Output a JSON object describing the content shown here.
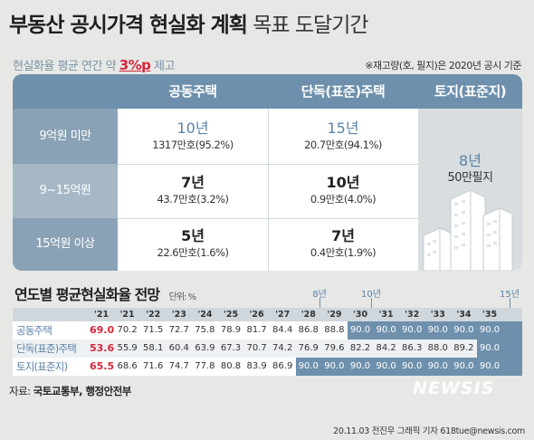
{
  "title_bold": "부동산 공시가격 현실화 계획",
  "title_light": "목표 도달기간",
  "subtitle_prefix": "현실화율 평균 연간 약",
  "subtitle_highlight": "3%p",
  "subtitle_suffix": "제고",
  "note": "※재고량(호, 필지)은 2020년 공시 기준",
  "columns": [
    "공동주택",
    "단독(표준)주택",
    "토지(표준지)"
  ],
  "rows": [
    "9억원 미만",
    "9~15억원",
    "15억원 이상"
  ],
  "cells": [
    [
      {
        "years": "10년",
        "count": "1317만호(95.2%)"
      },
      {
        "years": "15년",
        "count": "20.7만호(94.1%)"
      }
    ],
    [
      {
        "years": "7년",
        "count": "43.7만호(3.2%)"
      },
      {
        "years": "10년",
        "count": "0.9만호(4.0%)"
      }
    ],
    [
      {
        "years": "5년",
        "count": "22.6만호(1.6%)"
      },
      {
        "years": "7년",
        "count": "0.4만호(1.9%)"
      }
    ]
  ],
  "land": {
    "years": "8년",
    "count": "50만필지"
  },
  "section_title": "연도별 평균현실화율 전망",
  "unit_label": "단위: %",
  "markers": [
    "8년",
    "10년",
    "15년"
  ],
  "colors": {
    "accent": "#6e90ac",
    "highlight": "#d6263a",
    "goal": "#6e90ac"
  },
  "chart_data": {
    "type": "table",
    "categories": [
      "'21",
      "'21",
      "'22",
      "'23",
      "'24",
      "'25",
      "'26",
      "'27",
      "'28",
      "'29",
      "'30",
      "'31",
      "'32",
      "'33",
      "'34",
      "'35"
    ],
    "series": [
      {
        "name": "공동주택",
        "values": [
          "69.0",
          "70.2",
          "71.5",
          "72.7",
          "75.8",
          "78.9",
          "81.7",
          "84.4",
          "86.8",
          "88.8",
          "90.0",
          "90.0",
          "90.0",
          "90.0",
          "90.0",
          "90.0"
        ],
        "goal_from": 10
      },
      {
        "name": "단독(표준)주택",
        "values": [
          "53.6",
          "55.9",
          "58.1",
          "60.4",
          "63.9",
          "67.3",
          "70.7",
          "74.2",
          "76.9",
          "79.6",
          "82.2",
          "84.2",
          "86.3",
          "88.0",
          "89.2",
          "90.0"
        ],
        "goal_from": 15
      },
      {
        "name": "토지(표준지)",
        "values": [
          "65.5",
          "68.6",
          "71.6",
          "74.7",
          "77.8",
          "80.8",
          "83.9",
          "86.9",
          "90.0",
          "90.0",
          "90.0",
          "90.0",
          "90.0",
          "90.0",
          "90.0",
          "90.0"
        ],
        "goal_from": 8
      }
    ]
  },
  "source_prefix": "자료:",
  "source": "국토교통부, 행정안전부",
  "logo": "NEWSIS",
  "credit": "20.11.03 전진우 그래픽 기자 618tue@newsis.com"
}
